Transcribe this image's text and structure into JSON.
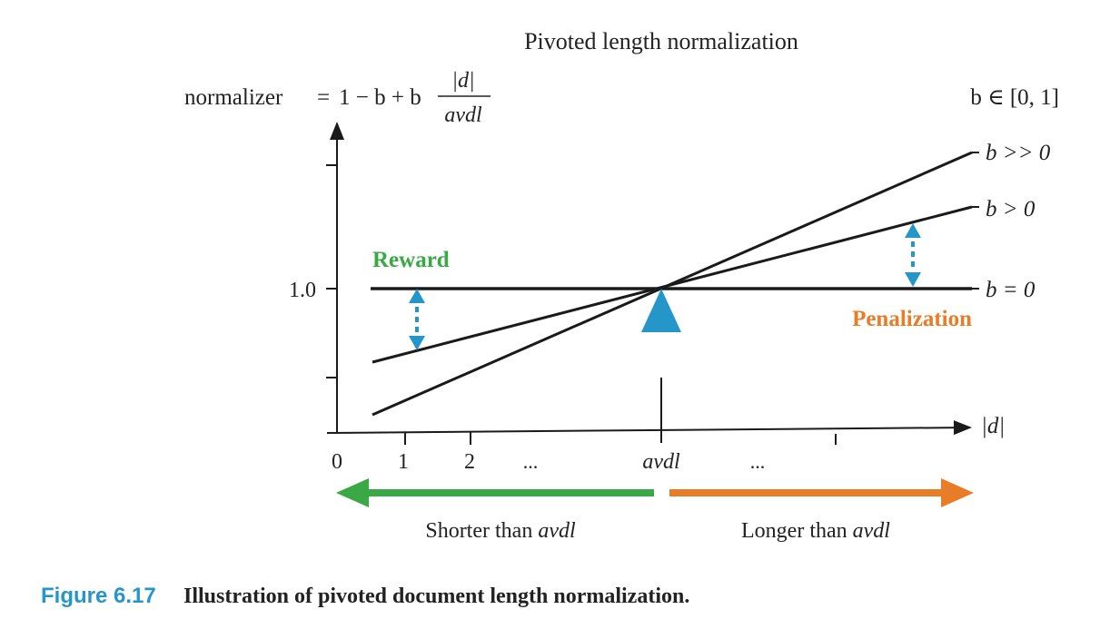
{
  "title": "Pivoted length normalization",
  "formula": {
    "lhs": "normalizer",
    "eq": "=",
    "rhs_prefix": "1 − b + b",
    "numerator": "|d|",
    "denominator": "avdl"
  },
  "b_range": "b ∈ [0, 1]",
  "y_axis": {
    "tick_label": "1.0"
  },
  "x_axis": {
    "label": "|d|",
    "ticks": [
      "0",
      "1",
      "2",
      "...",
      "avdl",
      "..."
    ]
  },
  "lines": [
    {
      "label": "b >> 0",
      "slope": "steep"
    },
    {
      "label": "b > 0",
      "slope": "moderate"
    },
    {
      "label": "b = 0",
      "slope": "flat"
    }
  ],
  "annotations": {
    "reward": "Reward",
    "penalization": "Penalization"
  },
  "arrows": {
    "shorter": "Shorter than avdl",
    "shorter_plain": "Shorter than ",
    "shorter_italic": "avdl",
    "longer_plain": "Longer than ",
    "longer_italic": "avdl"
  },
  "caption": {
    "label": "Figure 6.17",
    "text": "Illustration of pivoted document length normalization."
  },
  "colors": {
    "reward": "#3aa845",
    "penalization": "#e87c27",
    "pivot": "#2596c8",
    "left_arrow": "#3aa845",
    "right_arrow": "#e87c27",
    "caption_label": "#2596c8",
    "lines": "#1a1a1a"
  }
}
